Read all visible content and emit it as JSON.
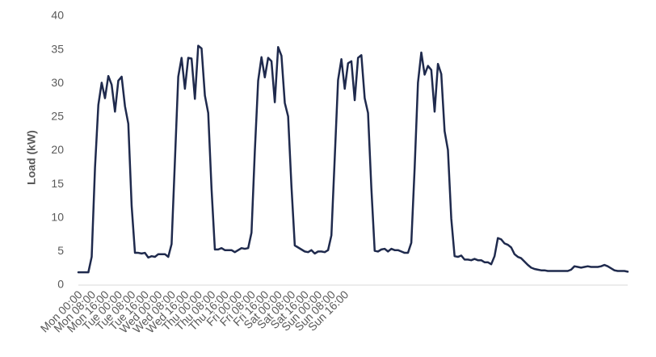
{
  "chart_data": {
    "type": "line",
    "title": "",
    "xlabel": "",
    "ylabel": "Load (kW)",
    "ylim": [
      0,
      40
    ],
    "yticks": [
      0,
      5,
      10,
      15,
      20,
      25,
      30,
      35,
      40
    ],
    "grid": false,
    "legend": "none",
    "x_step_hours": 2,
    "x_start": "Mon 00:00",
    "x_end": "Sun 22:00",
    "x_tick_labels": [
      "Mon 00:00",
      "Mon 08:00",
      "Mon 16:00",
      "Tue 00:00",
      "Tue 08:00",
      "Tue 16:00",
      "Wed 00:00",
      "Wed 08:00",
      "Wed 16:00",
      "Thu 00:00",
      "Thu 08:00",
      "Thu 16:00",
      "Fri 00:00",
      "Fri 08:00",
      "Fri 16:00",
      "Sat 00:00",
      "Sat 08:00",
      "Sat 16:00",
      "Sun 00:00",
      "Sun 08:00",
      "Sun 16:00"
    ],
    "series": [
      {
        "color": "#1f2a4d",
        "values": [
          1.9,
          1.9,
          1.9,
          1.9,
          4.2,
          17.5,
          26.8,
          30.1,
          27.8,
          31.1,
          29.8,
          25.8,
          30.4,
          31.0,
          26.6,
          24.0,
          11.8,
          4.8,
          4.8,
          4.7,
          4.8,
          4.1,
          4.3,
          4.2,
          4.6,
          4.6,
          4.6,
          4.2,
          6.1,
          18.5,
          31.0,
          33.8,
          29.2,
          33.8,
          33.7,
          27.7,
          35.6,
          35.2,
          28.2,
          25.6,
          14.3,
          5.3,
          5.3,
          5.5,
          5.2,
          5.2,
          5.2,
          4.9,
          5.2,
          5.5,
          5.4,
          5.5,
          7.8,
          19.9,
          30.4,
          33.9,
          30.9,
          33.8,
          33.3,
          27.2,
          35.4,
          34.1,
          27.1,
          25.1,
          14.7,
          5.9,
          5.6,
          5.3,
          5.0,
          4.9,
          5.2,
          4.7,
          5.0,
          5.0,
          4.9,
          5.2,
          7.4,
          18.9,
          30.5,
          33.6,
          29.2,
          33.0,
          33.3,
          27.5,
          33.8,
          34.2,
          27.8,
          25.6,
          14.4,
          5.1,
          5.0,
          5.3,
          5.4,
          5.0,
          5.4,
          5.2,
          5.2,
          5.0,
          4.8,
          4.8,
          6.3,
          17.4,
          30.1,
          34.6,
          31.3,
          32.6,
          32.0,
          25.8,
          32.9,
          31.4,
          22.9,
          20.1,
          9.9,
          4.3,
          4.2,
          4.4,
          3.8,
          3.8,
          3.7,
          3.9,
          3.7,
          3.7,
          3.4,
          3.4,
          3.1,
          4.3,
          7.0,
          6.8,
          6.2,
          6.0,
          5.6,
          4.6,
          4.2,
          4.0,
          3.5,
          3.0,
          2.6,
          2.4,
          2.3,
          2.2,
          2.2,
          2.1,
          2.1,
          2.1,
          2.1,
          2.1,
          2.1,
          2.1,
          2.3,
          2.8,
          2.7,
          2.6,
          2.7,
          2.8,
          2.7,
          2.7,
          2.7,
          2.8,
          3.0,
          2.8,
          2.5,
          2.2,
          2.1,
          2.1,
          2.1,
          2.0
        ]
      }
    ]
  }
}
